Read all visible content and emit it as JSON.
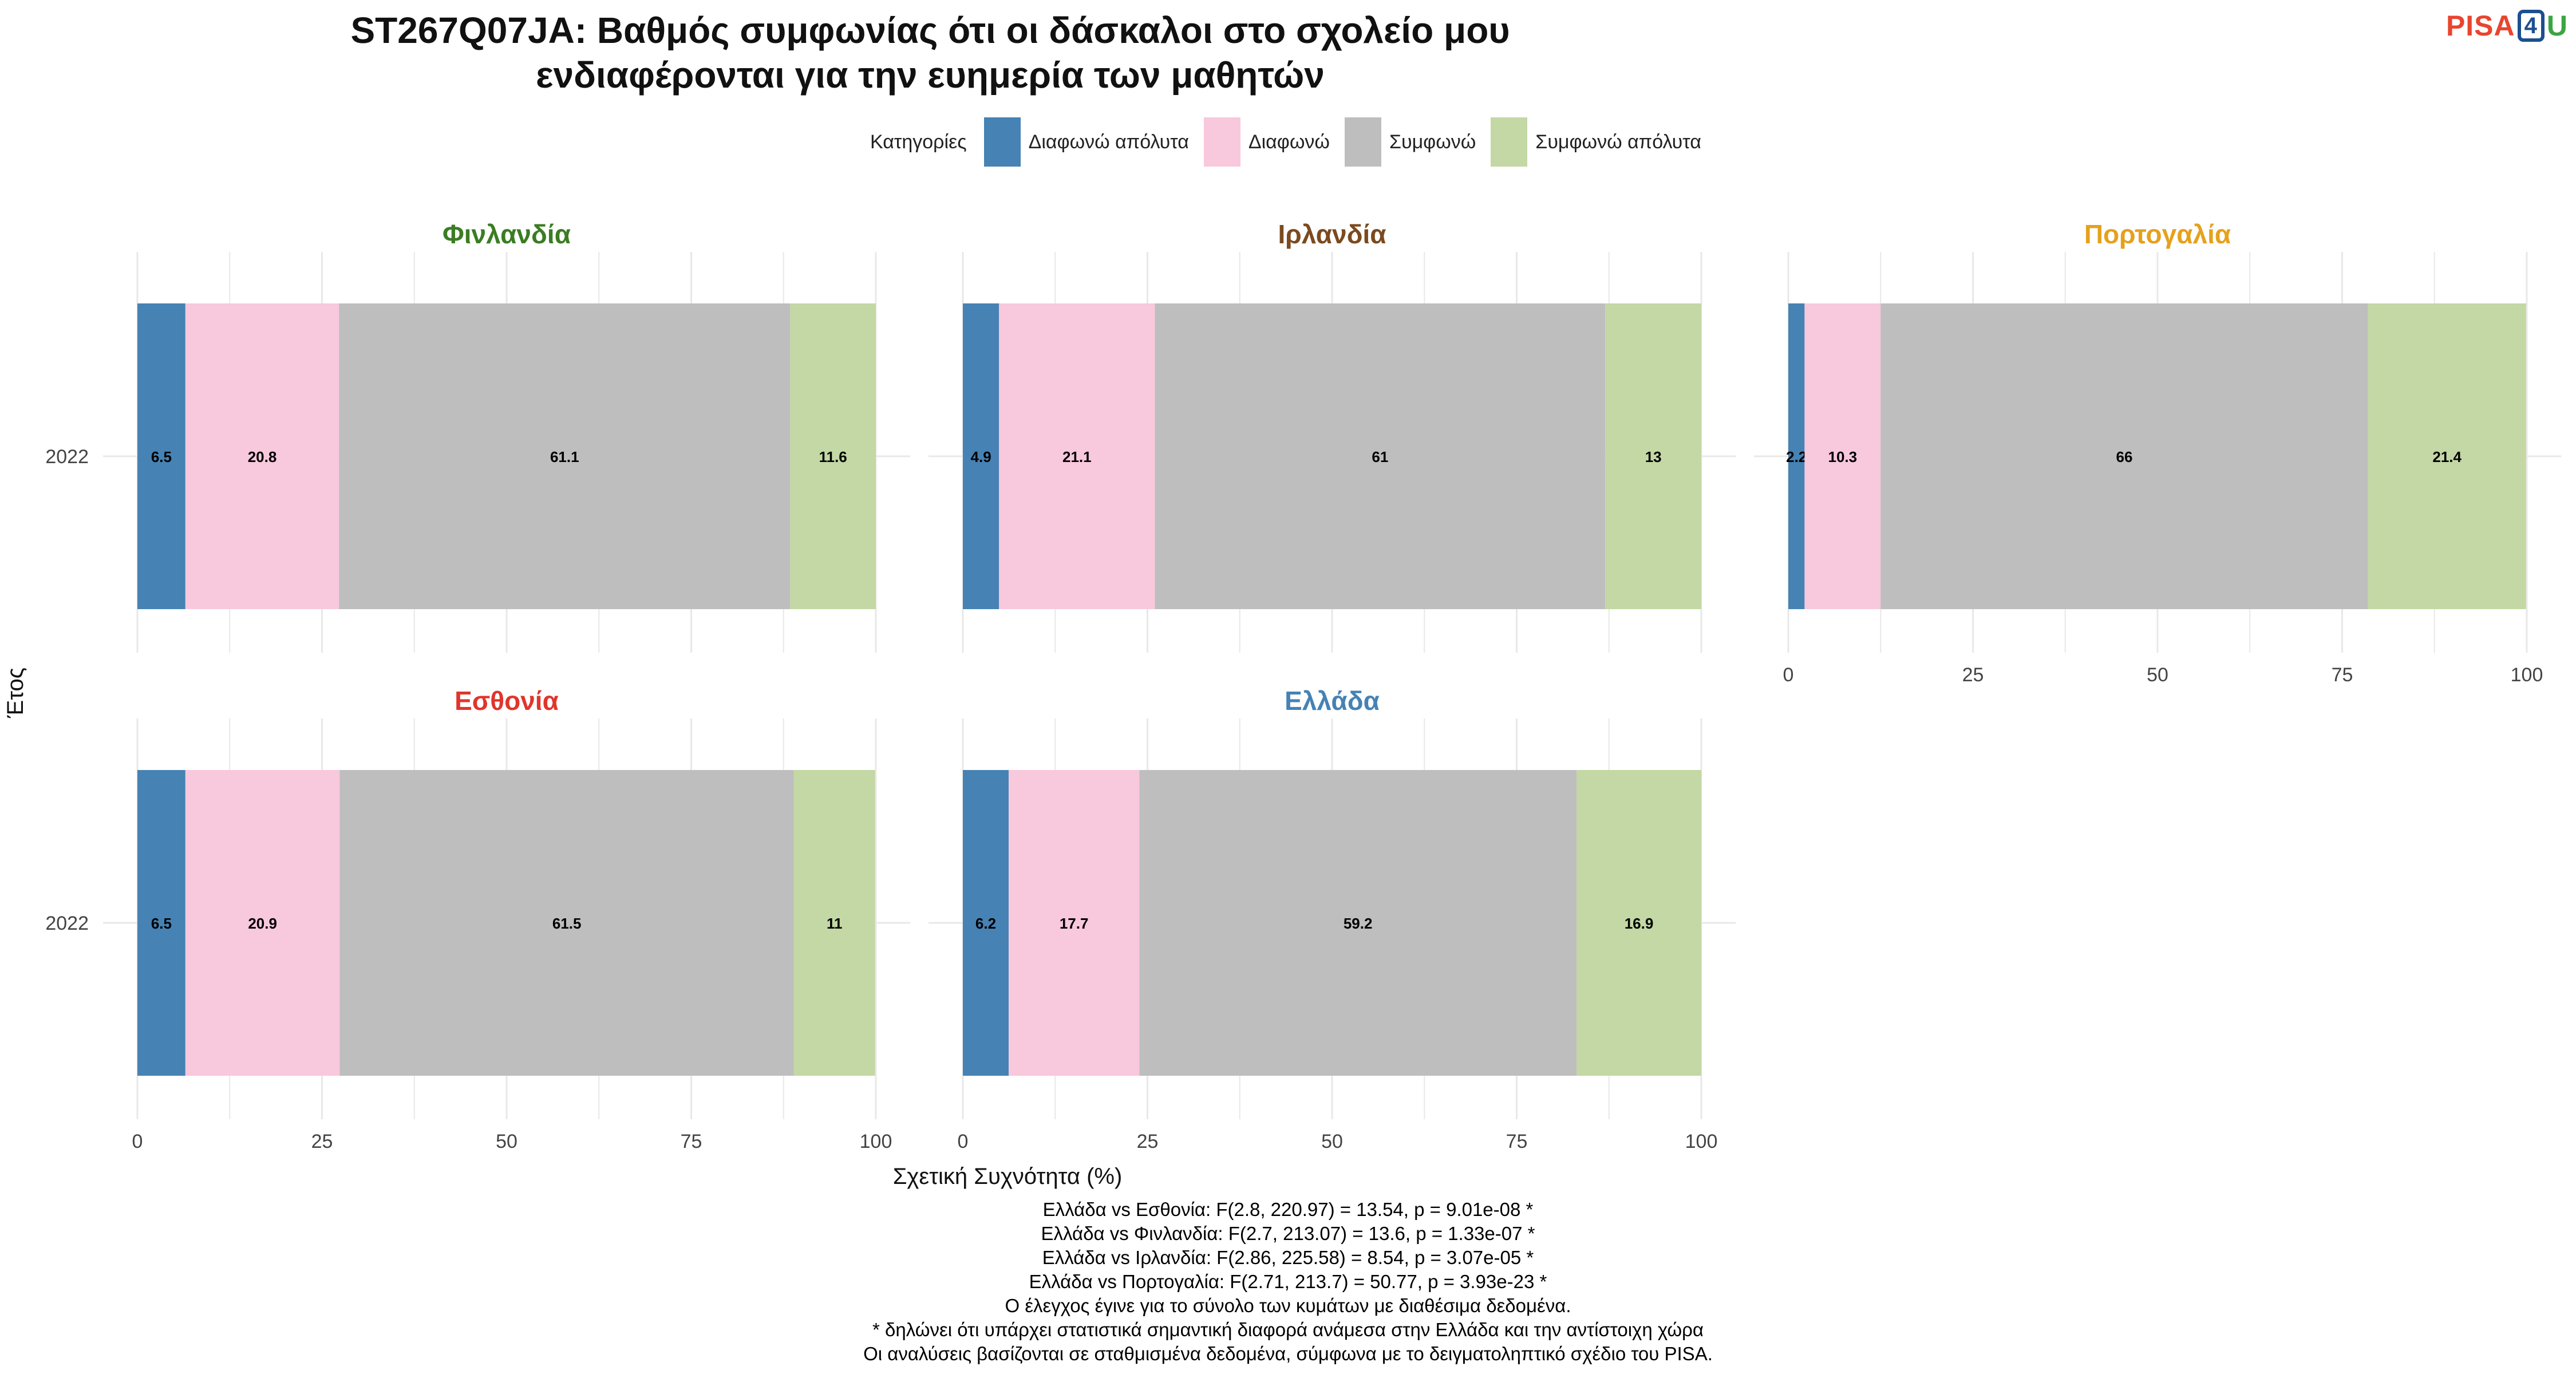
{
  "title_line1": "ST267Q07JA: Βαθμός συμφωνίας ότι οι δάσκαλοι στο σχολείο μου",
  "title_line2": "ενδιαφέρονται για την ευημερία των μαθητών",
  "logo": {
    "pisa": "PISA",
    "four": "4",
    "u": "U"
  },
  "legend": {
    "title": "Κατηγορίες",
    "items": [
      {
        "label": "Διαφωνώ απόλυτα",
        "color": "#4682b4"
      },
      {
        "label": "Διαφωνώ",
        "color": "#f8c8dc"
      },
      {
        "label": "Συμφωνώ",
        "color": "#bebebe"
      },
      {
        "label": "Συμφωνώ απόλυτα",
        "color": "#c3d8a4"
      }
    ]
  },
  "chart_data": {
    "type": "bar",
    "orientation": "horizontal-stacked",
    "xlabel": "Σχετική Συχνότητα (%)",
    "ylabel": "Έτος",
    "xlim": [
      0,
      100
    ],
    "xticks": [
      0,
      25,
      50,
      75,
      100
    ],
    "categories": [
      "Διαφωνώ απόλυτα",
      "Διαφωνώ",
      "Συμφωνώ",
      "Συμφωνώ απόλυτα"
    ],
    "legend_position": "top",
    "grid": true,
    "panels": [
      {
        "country": "Φινλανδία",
        "title_color": "#3a7d22",
        "year": "2022",
        "values": [
          6.5,
          20.8,
          61.1,
          11.6
        ]
      },
      {
        "country": "Ιρλανδία",
        "title_color": "#7b4a1e",
        "year": "2022",
        "values": [
          4.9,
          21.1,
          61,
          13
        ]
      },
      {
        "country": "Πορτογαλία",
        "title_color": "#e6a11c",
        "year": "2022",
        "values": [
          2.2,
          10.3,
          66,
          21.4
        ]
      },
      {
        "country": "Εσθονία",
        "title_color": "#e0352b",
        "year": "2022",
        "values": [
          6.5,
          20.9,
          61.5,
          11
        ]
      },
      {
        "country": "Ελλάδα",
        "title_color": "#4682b4",
        "year": "2022",
        "values": [
          6.2,
          17.7,
          59.2,
          16.9
        ]
      }
    ]
  },
  "notes": [
    "Ελλάδα vs Εσθονία: F(2.8, 220.97) = 13.54, p = 9.01e-08 *",
    "Ελλάδα vs Φινλανδία: F(2.7, 213.07) = 13.6, p = 1.33e-07 *",
    "Ελλάδα vs Ιρλανδία: F(2.86, 225.58) = 8.54, p = 3.07e-05 *",
    "Ελλάδα vs Πορτογαλία: F(2.71, 213.7) = 50.77, p = 3.93e-23 *",
    "Ο έλεγχος έγινε για το σύνολο των κυμάτων με διαθέσιμα δεδομένα.",
    "* δηλώνει ότι υπάρχει στατιστικά σημαντική διαφορά ανάμεσα στην Ελλάδα και την αντίστοιχη χώρα",
    "Οι αναλύσεις βασίζονται σε σταθμισμένα δεδομένα, σύμφωνα με το δειγματοληπτικό σχέδιο του PISA."
  ]
}
